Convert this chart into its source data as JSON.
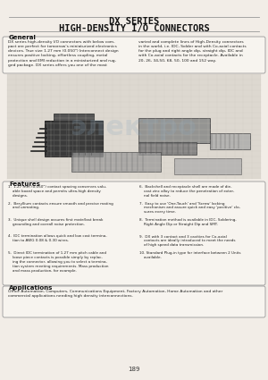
{
  "title_line1": "DX SERIES",
  "title_line2": "HIGH-DENSITY I/O CONNECTORS",
  "general_title": "General",
  "general_text_left": "DX series high-density I/O connectors with below com-\npact are perfect for tomorrow's miniaturized electronics\ndevices. True size 1.27 mm (0.050\") Interconnect design\nensures positive locking, effortless coupling, metal\nprotection and EMI reduction in a miniaturized and rug-\nged package. DX series offers you one of the most",
  "general_text_right": "varied and complete lines of High-Density connectors\nin the world, i.e. IDC, Solder and with Co-axial contacts\nfor the plug and right angle dip, straight dip, IDC and\nwith Co-axial contacts for the receptacle. Available in\n20, 26, 34,50, 68, 50, 100 and 152 way.",
  "features_title": "Features",
  "feat_left": [
    "1.  1.27 mm (0.050\") contact spacing conserves valu-\n    able board space and permits ultra-high density\n    designs.",
    "2.  Beryllium contacts ensure smooth and precise mating\n    and unmating.",
    "3.  Unique shell design assures first mate/last break\n    grounding and overall noise protection.",
    "4.  IDC termination allows quick and low cost termina-\n    tion to AWG 0.08 & 0.30 wires.",
    "5.  Direct IDC termination of 1.27 mm pitch cable and\n    loose piece contacts is possible simply by replac-\n    ing the connector, allowing you to select a termina-\n    tion system meeting requirements. Mass production\n    and mass production, for example."
  ],
  "feat_right": [
    "6.  Backshell and receptacle shell are made of die-\n    cast zinc alloy to reduce the penetration of exter-\n    nal field noise.",
    "7.  Easy to use 'One-Touch' and 'Screw' locking\n    mechanism and assure quick and easy 'positive' clo-\n    sures every time.",
    "8.  Termination method is available in IDC, Soldering,\n    Right Angle Dip or Straight Dip and SMT.",
    "9.  DX with 3 contact and 3 cavities for Co-axial\n    contacts are ideally introduced to meet the needs\n    of high speed data transmission.",
    "10. Standard Plug-in type for interface between 2 Units\n    available."
  ],
  "applications_title": "Applications",
  "applications_text": "Office Automation, Computers, Communications Equipment, Factory Automation, Home Automation and other\ncommercial applications needing high density interconnections.",
  "page_number": "189",
  "bg_color": "#f2ede7",
  "title_color": "#111111",
  "section_title_color": "#111111",
  "text_color": "#222222",
  "box_edge_color": "#999999",
  "box_bg": "#f7f4ef"
}
